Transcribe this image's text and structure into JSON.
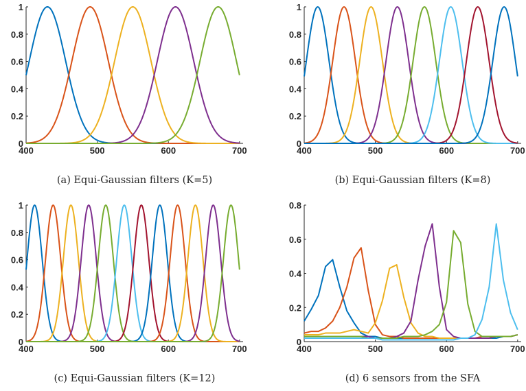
{
  "chart_data": [
    {
      "type": "line",
      "caption": "(a) Equi-Gaussian filters (K=5)",
      "centers": [
        430,
        490,
        550,
        610,
        670
      ],
      "fwhm": 60,
      "x_range": [
        400,
        700
      ],
      "xlim": [
        400,
        705
      ],
      "ylim": [
        0,
        1
      ],
      "xticks": [
        400,
        500,
        600,
        700
      ],
      "yticks": [
        0,
        0.2,
        0.4,
        0.6,
        0.8,
        1
      ],
      "colors": [
        "#0072BD",
        "#D95319",
        "#EDB120",
        "#7E2F8E",
        "#77AC30"
      ]
    },
    {
      "type": "line",
      "caption": "(b) Equi-Gaussian filters (K=8)",
      "centers": [
        419,
        456,
        494,
        531,
        569,
        606,
        644,
        681
      ],
      "fwhm": 37.5,
      "x_range": [
        400,
        700
      ],
      "xlim": [
        400,
        705
      ],
      "ylim": [
        0,
        1
      ],
      "xticks": [
        400,
        500,
        600,
        700
      ],
      "yticks": [
        0,
        0.2,
        0.4,
        0.6,
        0.8,
        1
      ],
      "colors": [
        "#0072BD",
        "#D95319",
        "#EDB120",
        "#7E2F8E",
        "#77AC30",
        "#4DBEEE",
        "#A2142F",
        "#0072BD"
      ]
    },
    {
      "type": "line",
      "caption": "(c) Equi-Gaussian filters (K=12)",
      "centers": [
        412,
        438,
        463,
        488,
        512,
        538,
        562,
        588,
        613,
        638,
        663,
        688
      ],
      "fwhm": 25,
      "x_range": [
        400,
        700
      ],
      "xlim": [
        400,
        705
      ],
      "ylim": [
        0,
        1
      ],
      "xticks": [
        400,
        500,
        600,
        700
      ],
      "yticks": [
        0,
        0.2,
        0.4,
        0.6,
        0.8,
        1
      ],
      "colors": [
        "#0072BD",
        "#D95319",
        "#EDB120",
        "#7E2F8E",
        "#77AC30",
        "#4DBEEE",
        "#A2142F",
        "#0072BD",
        "#D95319",
        "#EDB120",
        "#7E2F8E",
        "#77AC30"
      ]
    },
    {
      "type": "line",
      "caption": "(d) 6 sensors from the SFA",
      "x": [
        400,
        410,
        420,
        430,
        440,
        450,
        460,
        470,
        480,
        490,
        500,
        510,
        520,
        530,
        540,
        550,
        560,
        570,
        580,
        590,
        600,
        610,
        620,
        630,
        640,
        650,
        660,
        670,
        680,
        690,
        700
      ],
      "series": [
        {
          "color": "#0072BD",
          "values": [
            0.12,
            0.19,
            0.27,
            0.44,
            0.48,
            0.32,
            0.18,
            0.11,
            0.05,
            0.03,
            0.03,
            0.02,
            0.02,
            0.02,
            0.02,
            0.02,
            0.02,
            0.02,
            0.02,
            0.02,
            0.02,
            0.02,
            0.02,
            0.02,
            0.02,
            0.02,
            0.02,
            0.02,
            0.03,
            0.03,
            0.04
          ]
        },
        {
          "color": "#D95319",
          "values": [
            0.05,
            0.06,
            0.06,
            0.08,
            0.12,
            0.2,
            0.32,
            0.49,
            0.55,
            0.3,
            0.1,
            0.04,
            0.03,
            0.03,
            0.02,
            0.02,
            0.02,
            0.02,
            0.02,
            0.02,
            0.02,
            0.02,
            0.02,
            0.02,
            0.02,
            0.03,
            0.03,
            0.03,
            0.03,
            0.03,
            0.04
          ]
        },
        {
          "color": "#EDB120",
          "values": [
            0.04,
            0.04,
            0.04,
            0.05,
            0.05,
            0.05,
            0.06,
            0.07,
            0.06,
            0.05,
            0.11,
            0.24,
            0.43,
            0.45,
            0.26,
            0.11,
            0.05,
            0.03,
            0.03,
            0.02,
            0.02,
            0.02,
            0.02,
            0.02,
            0.02,
            0.02,
            0.02,
            0.03,
            0.03,
            0.03,
            0.04
          ]
        },
        {
          "color": "#7E2F8E",
          "values": [
            0.03,
            0.03,
            0.03,
            0.03,
            0.03,
            0.03,
            0.03,
            0.03,
            0.03,
            0.03,
            0.02,
            0.02,
            0.02,
            0.03,
            0.05,
            0.12,
            0.36,
            0.56,
            0.69,
            0.32,
            0.07,
            0.03,
            0.02,
            0.02,
            0.02,
            0.02,
            0.02,
            0.03,
            0.03,
            0.03,
            0.04
          ]
        },
        {
          "color": "#77AC30",
          "values": [
            0.03,
            0.03,
            0.03,
            0.03,
            0.03,
            0.03,
            0.03,
            0.03,
            0.03,
            0.02,
            0.02,
            0.02,
            0.02,
            0.02,
            0.03,
            0.03,
            0.03,
            0.04,
            0.06,
            0.1,
            0.23,
            0.65,
            0.58,
            0.22,
            0.06,
            0.03,
            0.03,
            0.03,
            0.03,
            0.03,
            0.04
          ]
        },
        {
          "color": "#4DBEEE",
          "values": [
            0.02,
            0.02,
            0.02,
            0.02,
            0.02,
            0.02,
            0.02,
            0.02,
            0.02,
            0.02,
            0.02,
            0.01,
            0.01,
            0.01,
            0.01,
            0.01,
            0.01,
            0.01,
            0.01,
            0.01,
            0.01,
            0.01,
            0.02,
            0.02,
            0.04,
            0.13,
            0.32,
            0.69,
            0.36,
            0.17,
            0.07
          ]
        }
      ],
      "xlim": [
        400,
        705
      ],
      "ylim": [
        0,
        0.8
      ],
      "xticks": [
        400,
        500,
        600,
        700
      ],
      "yticks": [
        0,
        0.2,
        0.4,
        0.6,
        0.8
      ]
    }
  ]
}
